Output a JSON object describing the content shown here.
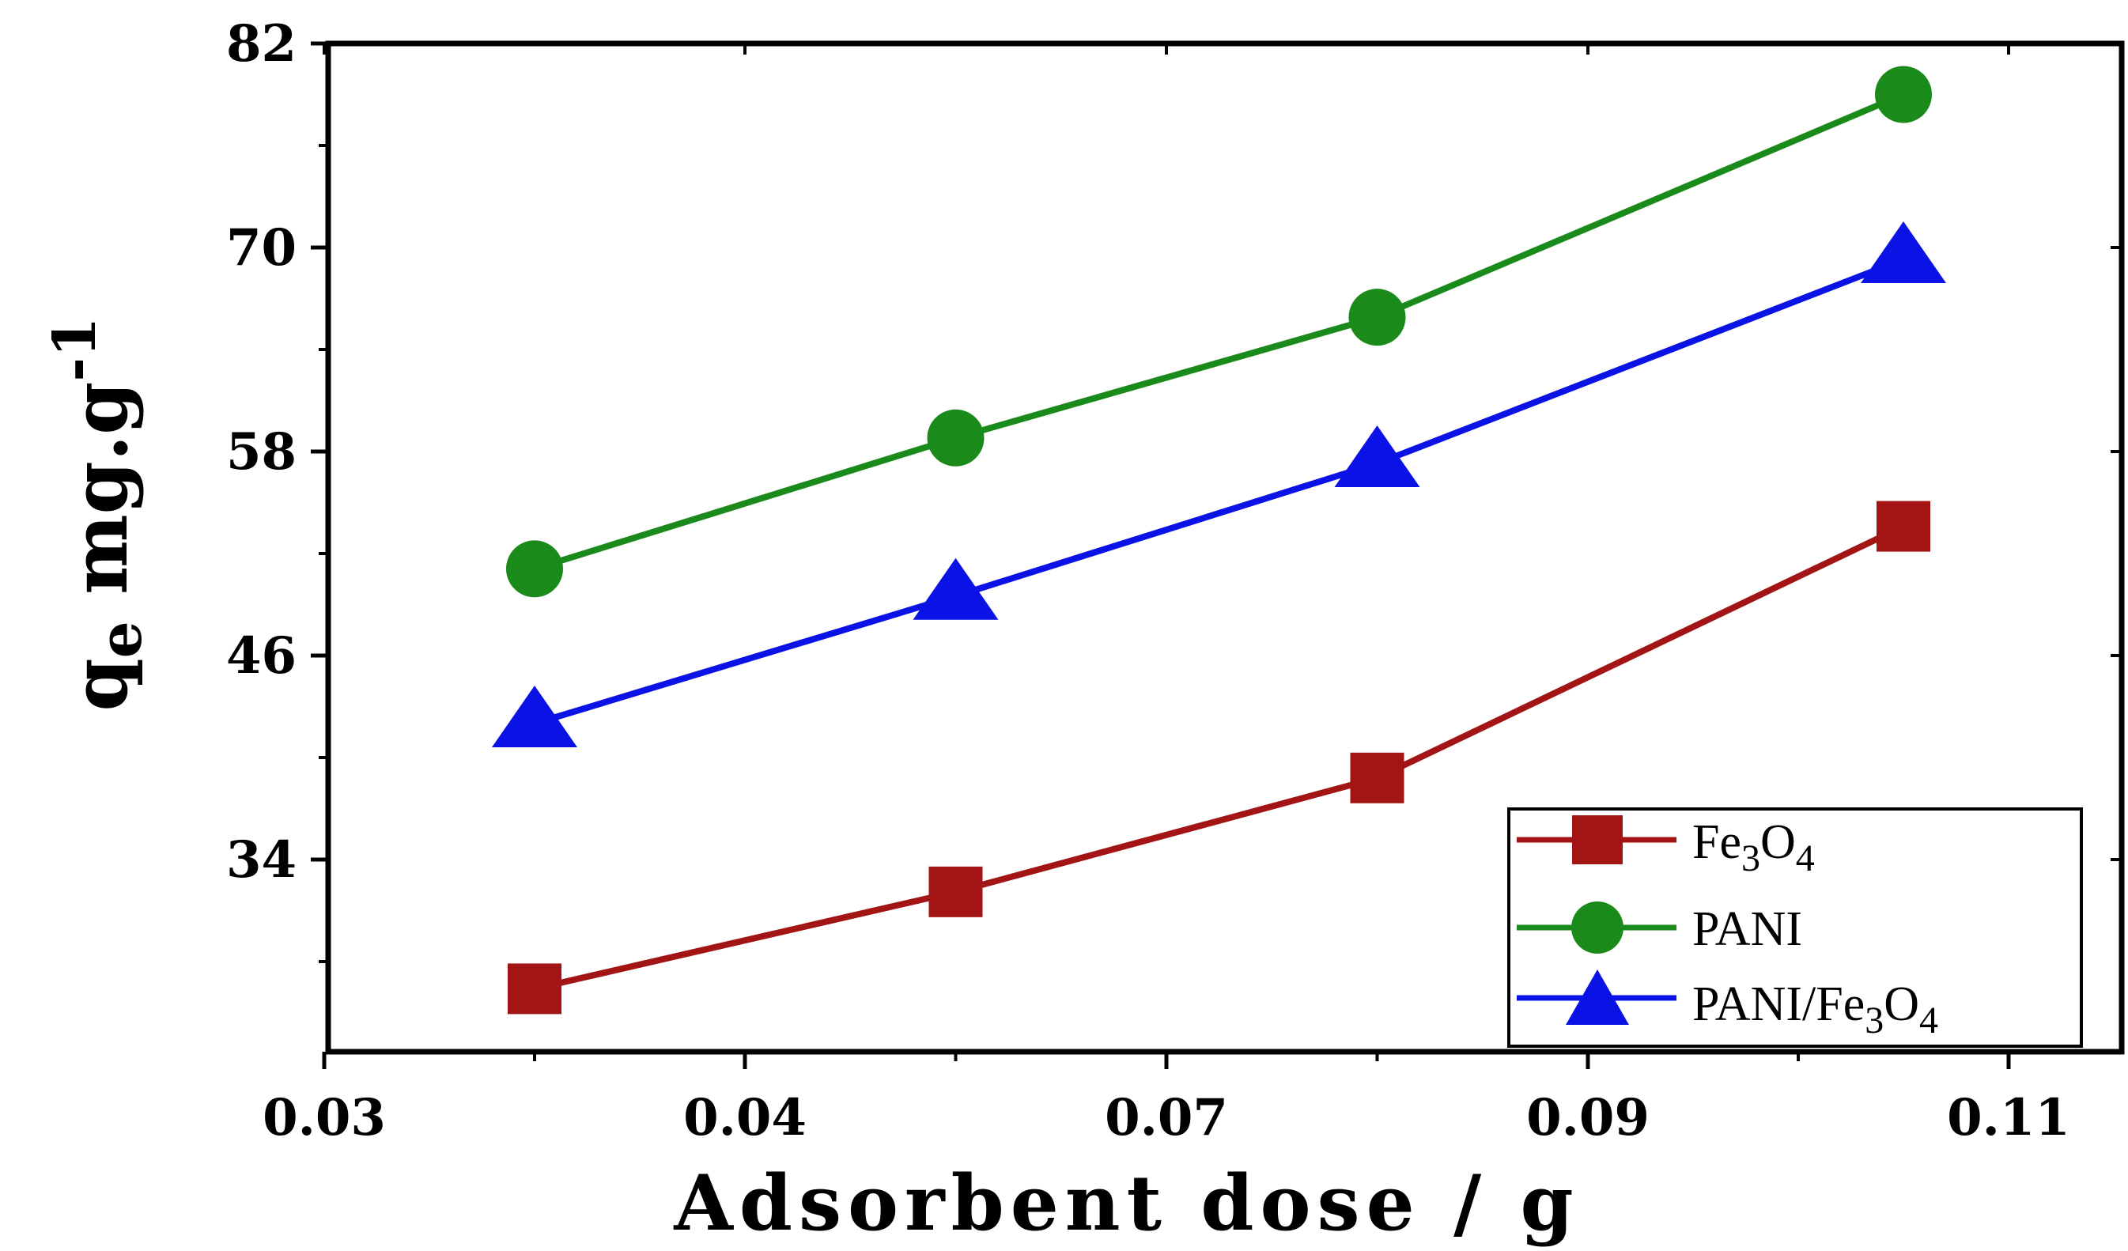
{
  "chart_data": {
    "type": "line",
    "x_ticks": [
      "0.03",
      "0.04",
      "0.07",
      "0.09",
      "0.11"
    ],
    "y_ticks": [
      82,
      70,
      58,
      46,
      34
    ],
    "ylim": [
      22,
      82
    ],
    "xlabel": "Adsorbent dose / g",
    "ylabel": {
      "main": "q",
      "sub": "e",
      "unit": " mg.g",
      "sup": "-1"
    },
    "x_positions_index": [
      0.5,
      1.5,
      2.5,
      3.75
    ],
    "series": [
      {
        "name": "Fe3O4",
        "label": {
          "a": "Fe",
          "b": "3",
          "c": "O",
          "d": "4"
        },
        "color": "#a31515",
        "marker": "square",
        "values": [
          26.4,
          32.1,
          38.8,
          53.6
        ]
      },
      {
        "name": "PANI",
        "label": {
          "a": "PANI"
        },
        "color": "#1a8a1a",
        "marker": "circle",
        "values": [
          51.1,
          58.8,
          65.9,
          79.0
        ]
      },
      {
        "name": "PANI/Fe3O4",
        "label": {
          "a": "PANI/Fe",
          "b": "3",
          "c": "O",
          "d": "4"
        },
        "color": "#0a12e6",
        "marker": "triangle",
        "values": [
          42.0,
          49.5,
          57.3,
          69.3
        ]
      }
    ],
    "legend_position": "bottom-right",
    "grid": false
  }
}
